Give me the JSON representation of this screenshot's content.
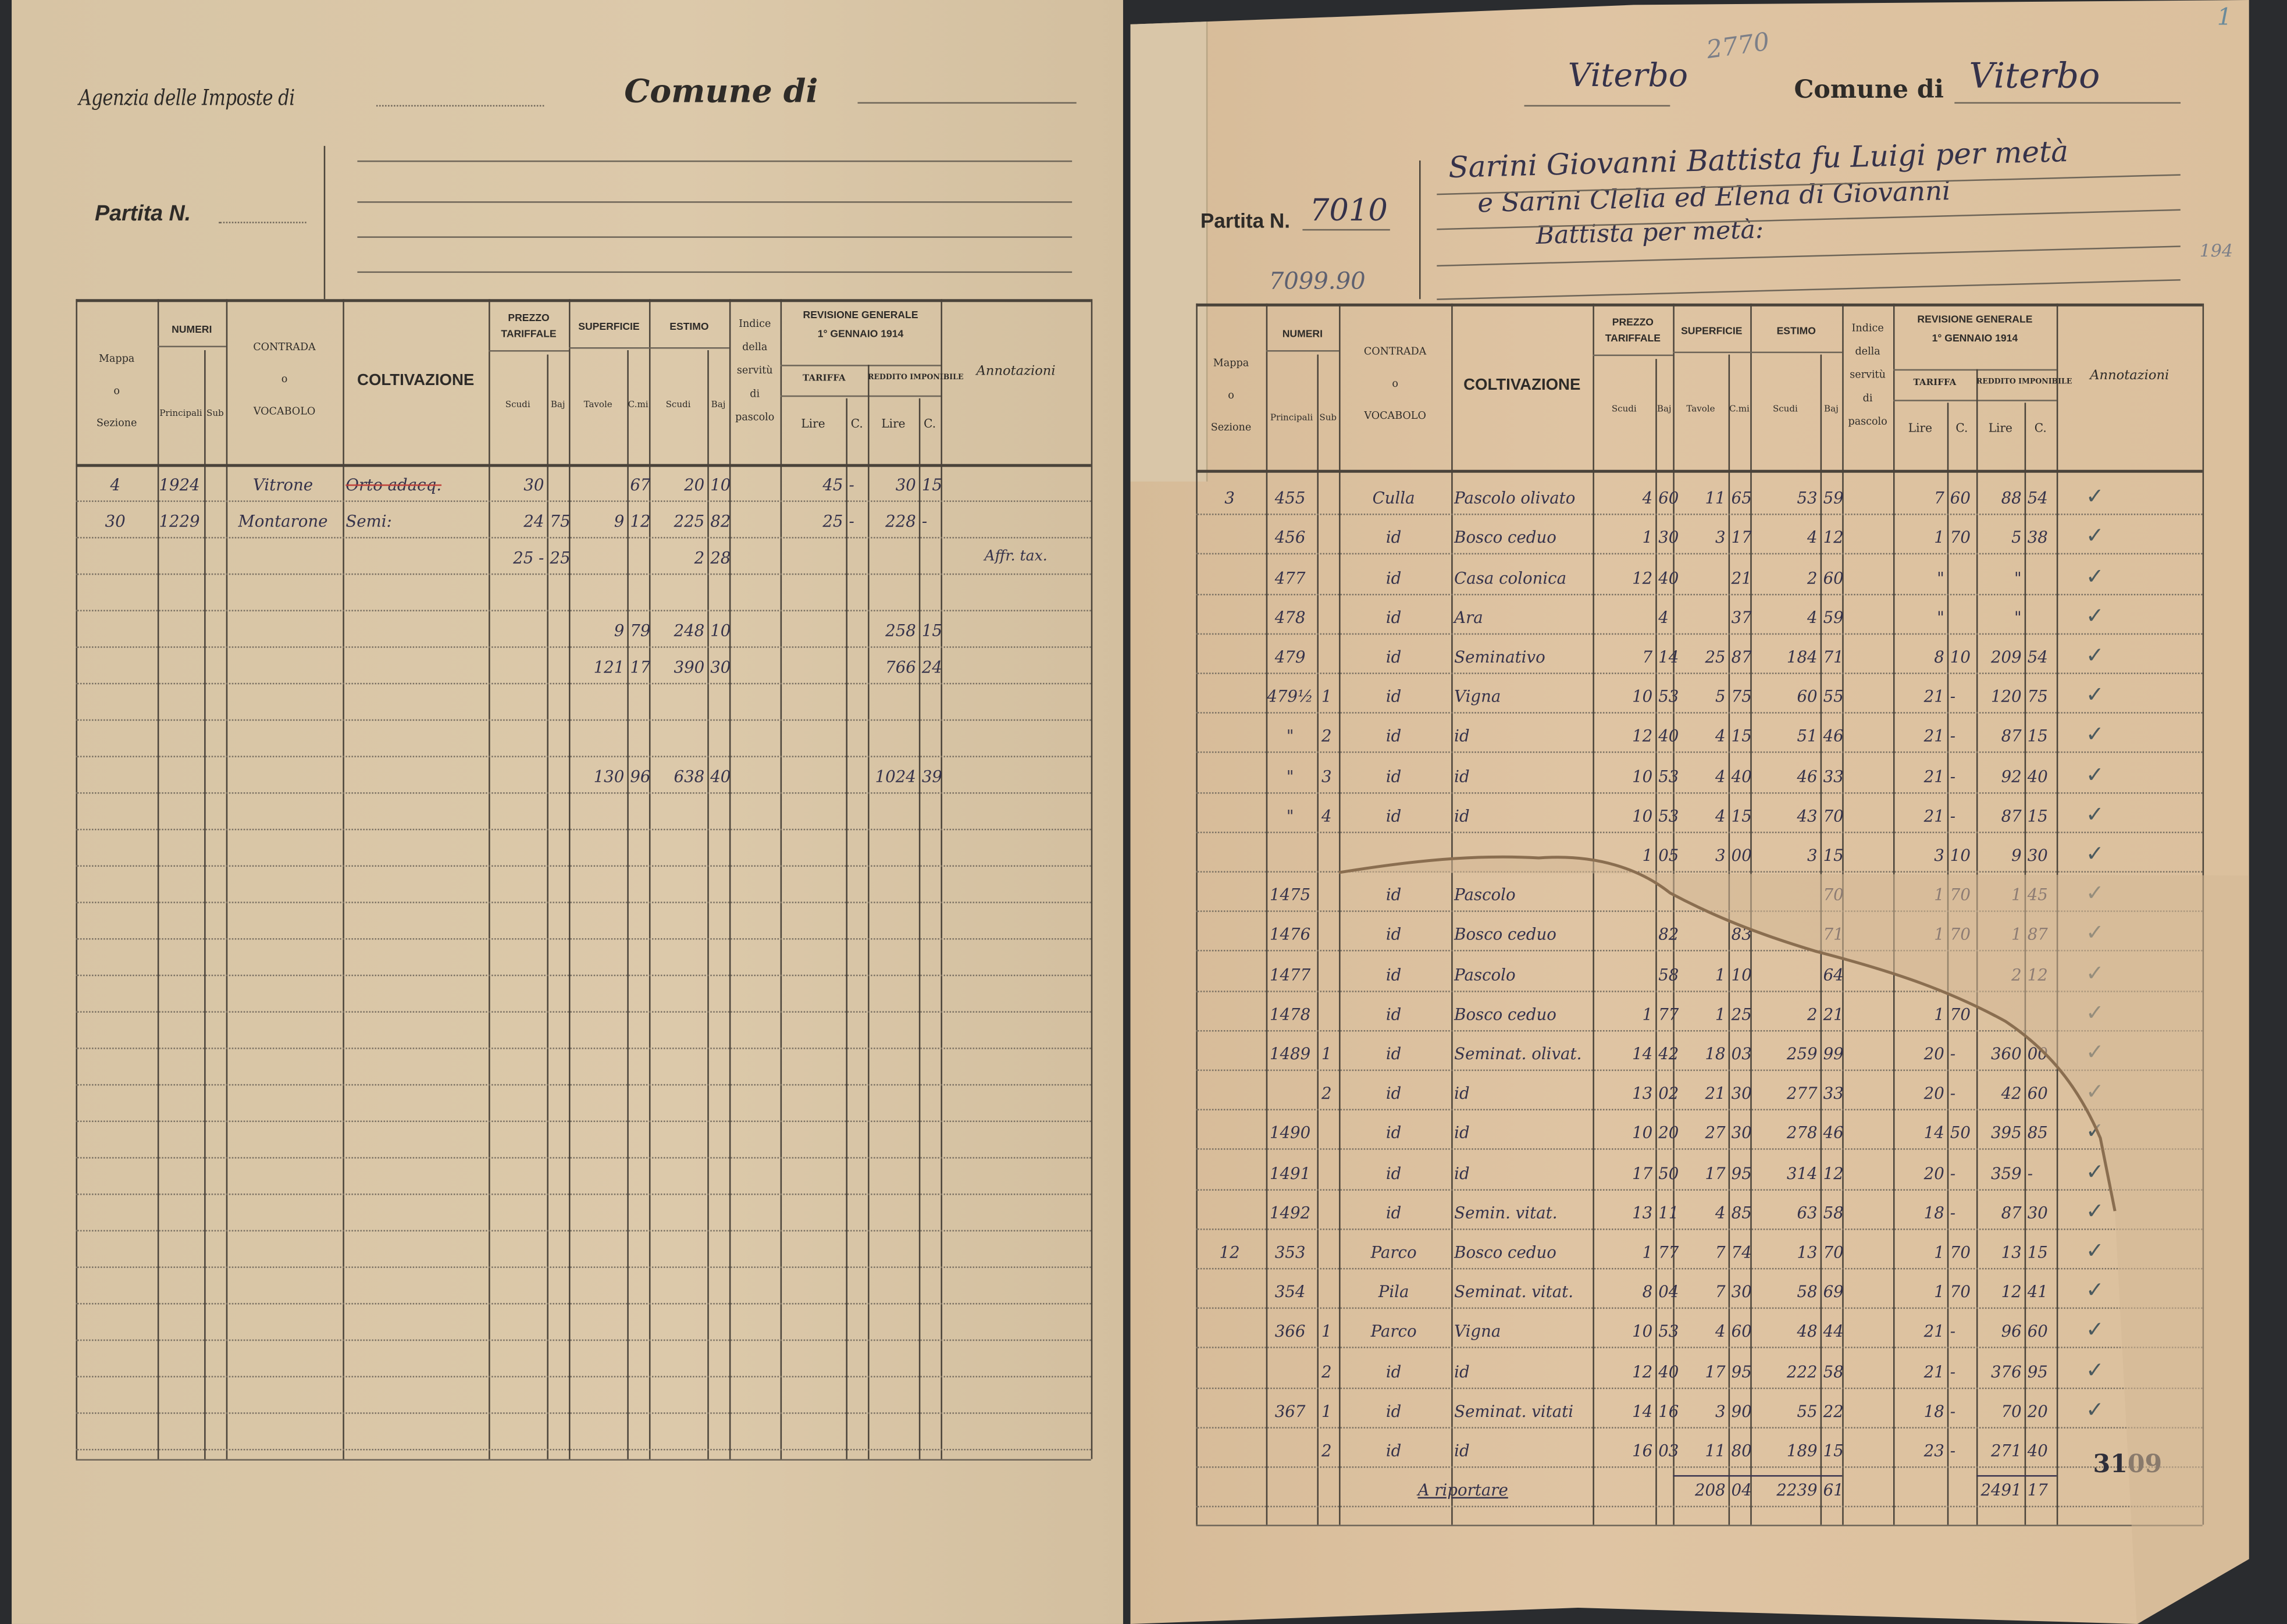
{
  "document": {
    "colors": {
      "paper_left": "#d9c6a7",
      "paper_right": "#dcc1a0",
      "ink_print": "#2e2b28",
      "ink_hand": "#35324a",
      "background": "#2a2c2f"
    },
    "table_header": {
      "mappa": [
        "Mappa",
        "o",
        "Sezione"
      ],
      "numeri": "NUMERI",
      "principali": "Principali",
      "sub": "Sub",
      "contrada": [
        "CONTRADA",
        "o",
        "VOCABOLO"
      ],
      "coltivazione": "COLTIVAZIONE",
      "prezzo": [
        "PREZZO",
        "TARIFFALE"
      ],
      "superficie": "SUPERFICIE",
      "estimo": "ESTIMO",
      "scudi": "Scudi",
      "baj": "Baj",
      "tavole": "Tavole",
      "cmi": "C.mi",
      "indice": [
        "Indice",
        "della",
        "servitù",
        "di",
        "pascolo"
      ],
      "revisione": [
        "REVISIONE GENERALE",
        "1° GENNAIO 1914"
      ],
      "tariffa": "TARIFFA",
      "reddito": "REDDITO IMPONIBILE",
      "lire": "Lire",
      "c": "C.",
      "annotazioni": "Annotazioni"
    },
    "left_page": {
      "agenzia_label": "Agenzia delle Imposte di",
      "comune_label": "Comune di",
      "partita_label": "Partita N.",
      "rows": [
        {
          "c": [
            "4",
            "1924",
            "",
            "Vitrone",
            "Orto adacq.",
            "30",
            "",
            "",
            "67",
            "20",
            "10",
            "",
            "45",
            "-",
            "30",
            "15"
          ],
          "note": "",
          "struck": true
        },
        {
          "c": [
            "30",
            "1229",
            "",
            "Montarone",
            "Semi:",
            "24",
            "75",
            "9",
            "12",
            "225",
            "82",
            "",
            "25",
            "-",
            "228",
            "-"
          ],
          "note": ""
        },
        {
          "c": [
            "",
            "",
            "",
            "",
            "",
            "25 -",
            "25",
            "",
            "",
            "2",
            "28",
            "",
            "",
            "",
            "",
            ""
          ],
          "note": "Affr. tax."
        },
        {
          "c": [
            "",
            "",
            "",
            "",
            "",
            "",
            "",
            "",
            "",
            "",
            "",
            "",
            "",
            "",
            "",
            ""
          ],
          "note": ""
        },
        {
          "c": [
            "",
            "",
            "",
            "",
            "",
            "",
            "",
            "9",
            "79",
            "248",
            "10",
            "",
            "",
            "",
            "258",
            "15"
          ],
          "note": ""
        },
        {
          "c": [
            "",
            "",
            "",
            "",
            "",
            "",
            "",
            "121",
            "17",
            "390",
            "30",
            "",
            "",
            "",
            "766",
            "24"
          ],
          "note": ""
        },
        {
          "c": [
            "",
            "",
            "",
            "",
            "",
            "",
            "",
            "",
            "",
            "",
            "",
            "",
            "",
            "",
            "",
            ""
          ],
          "note": ""
        },
        {
          "c": [
            "",
            "",
            "",
            "",
            "",
            "",
            "",
            "130",
            "96",
            "638",
            "40",
            "",
            "",
            "",
            "1024",
            "39"
          ],
          "note": ""
        }
      ]
    },
    "right_page": {
      "agenzia_value": "Viterbo",
      "pencil_number": "2770",
      "comune_label": "Comune di",
      "comune_value": "Viterbo",
      "partita_label": "Partita N.",
      "partita_value": "7010",
      "partita_note": "7099.90",
      "owner_lines": [
        "Sarini Giovanni Battista fu Luigi per metà",
        "e Sarini Clelia ed Elena di Giovanni",
        "Battista per metà:"
      ],
      "margin_number": "194",
      "corner_number": "1",
      "stamp_number": "3109",
      "rows": [
        {
          "c": [
            "3",
            "455",
            "",
            "Culla",
            "Pascolo olivato",
            "4",
            "60",
            "11",
            "65",
            "53",
            "59",
            "",
            "7",
            "60",
            "88",
            "54"
          ],
          "check": true
        },
        {
          "c": [
            "",
            "456",
            "",
            "id",
            "Bosco ceduo",
            "1",
            "30",
            "3",
            "17",
            "4",
            "12",
            "",
            "1",
            "70",
            "5",
            "38"
          ],
          "check": true
        },
        {
          "c": [
            "",
            "477",
            "",
            "id",
            "Casa colonica",
            "12",
            "40",
            "",
            "21",
            "2",
            "60",
            "",
            "\"",
            "",
            "\"",
            ""
          ],
          "check": true
        },
        {
          "c": [
            "",
            "478",
            "",
            "id",
            "Ara",
            "",
            "4",
            "",
            "37",
            "4",
            "59",
            "",
            "\"",
            "",
            "\"",
            ""
          ],
          "check": true
        },
        {
          "c": [
            "",
            "479",
            "",
            "id",
            "Seminativo",
            "7",
            "14",
            "25",
            "87",
            "184",
            "71",
            "",
            "8",
            "10",
            "209",
            "54"
          ],
          "check": true
        },
        {
          "c": [
            "",
            "479½",
            "1",
            "id",
            "Vigna",
            "10",
            "53",
            "5",
            "75",
            "60",
            "55",
            "",
            "21",
            "-",
            "120",
            "75"
          ],
          "check": true
        },
        {
          "c": [
            "",
            "\"",
            "2",
            "id",
            "id",
            "12",
            "40",
            "4",
            "15",
            "51",
            "46",
            "",
            "21",
            "-",
            "87",
            "15"
          ],
          "check": true
        },
        {
          "c": [
            "",
            "\"",
            "3",
            "id",
            "id",
            "10",
            "53",
            "4",
            "40",
            "46",
            "33",
            "",
            "21",
            "-",
            "92",
            "40"
          ],
          "check": true
        },
        {
          "c": [
            "",
            "\"",
            "4",
            "id",
            "id",
            "10",
            "53",
            "4",
            "15",
            "43",
            "70",
            "",
            "21",
            "-",
            "87",
            "15"
          ],
          "check": true
        },
        {
          "c": [
            "",
            "",
            "",
            "",
            "",
            "1",
            "05",
            "3",
            "00",
            "3",
            "15",
            "",
            "3",
            "10",
            "9",
            "30"
          ],
          "check": true
        },
        {
          "c": [
            "",
            "1475",
            "",
            "id",
            "Pascolo",
            "",
            "",
            "",
            "",
            "",
            "70",
            "",
            "1",
            "70",
            "1",
            "45"
          ],
          "check": true
        },
        {
          "c": [
            "",
            "1476",
            "",
            "id",
            "Bosco ceduo",
            "",
            "82",
            "",
            "83",
            "",
            "71",
            "",
            "1",
            "70",
            "1",
            "87"
          ],
          "check": true
        },
        {
          "c": [
            "",
            "1477",
            "",
            "id",
            "Pascolo",
            "",
            "58",
            "1",
            "10",
            "",
            "64",
            "",
            "",
            "",
            "2",
            "12"
          ],
          "check": true
        },
        {
          "c": [
            "",
            "1478",
            "",
            "id",
            "Bosco ceduo",
            "1",
            "77",
            "1",
            "25",
            "2",
            "21",
            "",
            "1",
            "70",
            "",
            ""
          ],
          "check": true
        },
        {
          "c": [
            "",
            "1489",
            "1",
            "id",
            "Seminat. olivat.",
            "14",
            "42",
            "18",
            "03",
            "259",
            "99",
            "",
            "20",
            "-",
            "360",
            "00"
          ],
          "check": true
        },
        {
          "c": [
            "",
            "",
            "2",
            "id",
            "id",
            "13",
            "02",
            "21",
            "30",
            "277",
            "33",
            "",
            "20",
            "-",
            "42",
            "60"
          ],
          "check": true
        },
        {
          "c": [
            "",
            "1490",
            "",
            "id",
            "id",
            "10",
            "20",
            "27",
            "30",
            "278",
            "46",
            "",
            "14",
            "50",
            "395",
            "85"
          ],
          "check": true
        },
        {
          "c": [
            "",
            "1491",
            "",
            "id",
            "id",
            "17",
            "50",
            "17",
            "95",
            "314",
            "12",
            "",
            "20",
            "-",
            "359",
            "-"
          ],
          "check": true
        },
        {
          "c": [
            "",
            "1492",
            "",
            "id",
            "Semin. vitat.",
            "13",
            "11",
            "4",
            "85",
            "63",
            "58",
            "",
            "18",
            "-",
            "87",
            "30"
          ],
          "check": true
        },
        {
          "c": [
            "12",
            "353",
            "",
            "Parco",
            "Bosco ceduo",
            "1",
            "77",
            "7",
            "74",
            "13",
            "70",
            "",
            "1",
            "70",
            "13",
            "15"
          ],
          "check": true
        },
        {
          "c": [
            "",
            "354",
            "",
            "Pila",
            "Seminat. vitat.",
            "8",
            "04",
            "7",
            "30",
            "58",
            "69",
            "",
            "1",
            "70",
            "12",
            "41"
          ],
          "check": true
        },
        {
          "c": [
            "",
            "366",
            "1",
            "Parco",
            "Vigna",
            "10",
            "53",
            "4",
            "60",
            "48",
            "44",
            "",
            "21",
            "-",
            "96",
            "60"
          ],
          "check": true
        },
        {
          "c": [
            "",
            "",
            "2",
            "id",
            "id",
            "12",
            "40",
            "17",
            "95",
            "222",
            "58",
            "",
            "21",
            "-",
            "376",
            "95"
          ],
          "check": true
        },
        {
          "c": [
            "",
            "367",
            "1",
            "id",
            "Seminat. vitati",
            "14",
            "16",
            "3",
            "90",
            "55",
            "22",
            "",
            "18",
            "-",
            "70",
            "20"
          ],
          "check": true
        },
        {
          "c": [
            "",
            "",
            "2",
            "id",
            "id",
            "16",
            "03",
            "11",
            "80",
            "189",
            "15",
            "",
            "23",
            "-",
            "271",
            "40"
          ],
          "check": false
        }
      ],
      "totals": {
        "label": "A riportare",
        "superficie_tavole": "208",
        "superficie_cmi": "04",
        "estimo_scudi": "2239",
        "estimo_baj": "61",
        "reddito_lire": "2491",
        "reddito_c": "17"
      }
    }
  }
}
